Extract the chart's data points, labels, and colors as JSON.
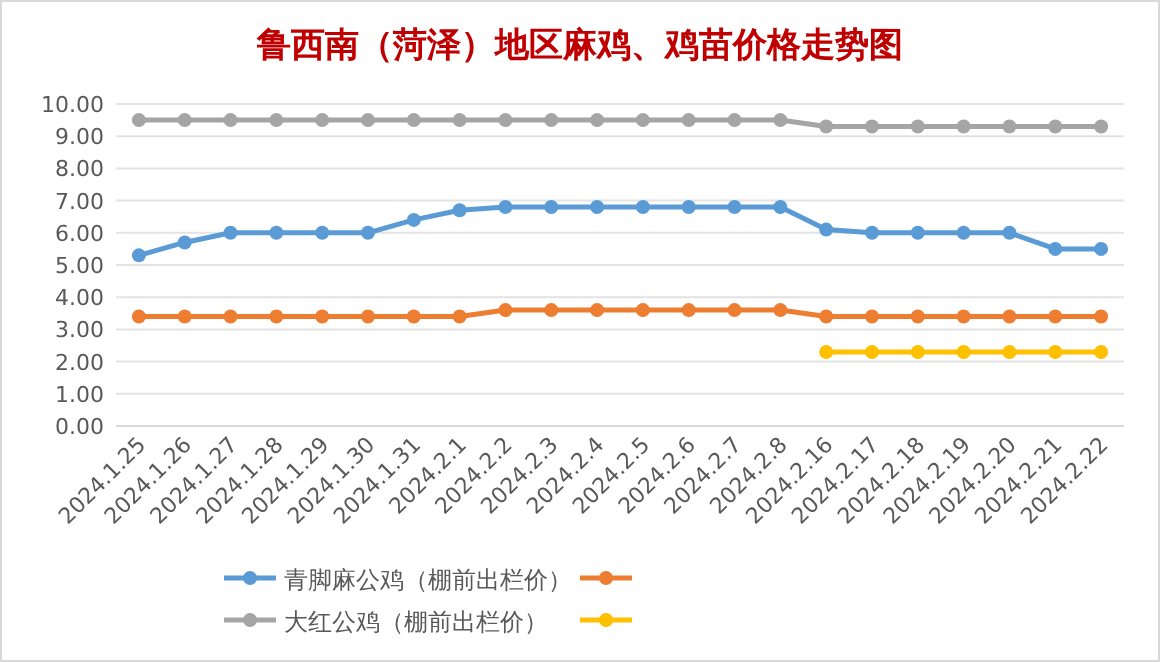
{
  "chart_data": {
    "type": "line",
    "title": "鲁西南（菏泽）地区麻鸡、鸡苗价格走势图",
    "categories": [
      "2024.1.25",
      "2024.1.26",
      "2024.1.27",
      "2024.1.28",
      "2024.1.29",
      "2024.1.30",
      "2024.1.31",
      "2024.2.1",
      "2024.2.2",
      "2024.2.3",
      "2024.2.4",
      "2024.2.5",
      "2024.2.6",
      "2024.2.7",
      "2024.2.8",
      "2024.2.16",
      "2024.2.17",
      "2024.2.18",
      "2024.2.19",
      "2024.2.20",
      "2024.2.21",
      "2024.2.22"
    ],
    "series": [
      {
        "name": "青脚麻公鸡（棚前出栏价）",
        "color": "#5b9bd5",
        "values": [
          5.3,
          5.7,
          6.0,
          6.0,
          6.0,
          6.0,
          6.4,
          6.7,
          6.8,
          6.8,
          6.8,
          6.8,
          6.8,
          6.8,
          6.8,
          6.1,
          6.0,
          6.0,
          6.0,
          6.0,
          5.5,
          5.5
        ]
      },
      {
        "color": "#ed7d31",
        "values": [
          3.4,
          3.4,
          3.4,
          3.4,
          3.4,
          3.4,
          3.4,
          3.4,
          3.6,
          3.6,
          3.6,
          3.6,
          3.6,
          3.6,
          3.6,
          3.4,
          3.4,
          3.4,
          3.4,
          3.4,
          3.4,
          3.4
        ]
      },
      {
        "name": "大红公鸡（棚前出栏价）",
        "color": "#a5a5a5",
        "values": [
          9.5,
          9.5,
          9.5,
          9.5,
          9.5,
          9.5,
          9.5,
          9.5,
          9.5,
          9.5,
          9.5,
          9.5,
          9.5,
          9.5,
          9.5,
          9.3,
          9.3,
          9.3,
          9.3,
          9.3,
          9.3,
          9.3
        ]
      },
      {
        "color": "#ffc000",
        "values": [
          null,
          null,
          null,
          null,
          null,
          null,
          null,
          null,
          null,
          null,
          null,
          null,
          null,
          null,
          null,
          2.3,
          2.3,
          2.3,
          2.3,
          2.3,
          2.3,
          2.3
        ]
      }
    ],
    "ylim": [
      0,
      10
    ],
    "yticks": [
      {
        "value": 0,
        "label": "0.00"
      },
      {
        "value": 1,
        "label": "1.00"
      },
      {
        "value": 2,
        "label": "2.00"
      },
      {
        "value": 3,
        "label": "3.00"
      },
      {
        "value": 4,
        "label": "4.00"
      },
      {
        "value": 5,
        "label": "5.00"
      },
      {
        "value": 6,
        "label": "6.00"
      },
      {
        "value": 7,
        "label": "7.00"
      },
      {
        "value": 8,
        "label": "8.00"
      },
      {
        "value": 9,
        "label": "9.00"
      },
      {
        "value": 10,
        "label": "10.00"
      }
    ],
    "grid": "y",
    "legend": "bottom",
    "marker": "circle",
    "line_style": "solid"
  }
}
